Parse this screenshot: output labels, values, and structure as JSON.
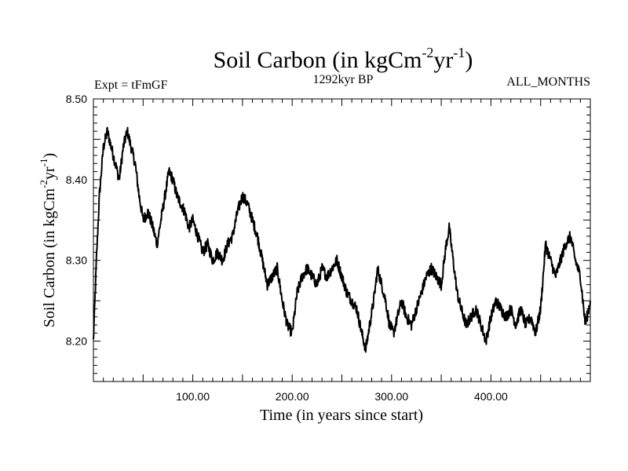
{
  "chart_data": {
    "type": "line",
    "title_main": "Soil Carbon (in kgCm",
    "title_sup1": "-2",
    "title_mid": "yr",
    "title_sup2": "-1",
    "title_end": ")",
    "subtitle_left": "Expt = tFmGF",
    "subtitle_center": "1292kyr BP",
    "subtitle_right": "ALL_MONTHS",
    "xlabel": "Time (in years since start)",
    "ylabel_main": "Soil Carbon (in kgCm",
    "ylabel_sup1": "-2",
    "ylabel_mid": "yr",
    "ylabel_sup2": "-1",
    "ylabel_end": ")",
    "xlim": [
      0,
      500
    ],
    "ylim": [
      8.15,
      8.5
    ],
    "x_ticks": [
      100,
      200,
      300,
      400
    ],
    "x_tick_labels": [
      "100.00",
      "200.00",
      "300.00",
      "400.00"
    ],
    "y_ticks": [
      8.2,
      8.3,
      8.4,
      8.5
    ],
    "y_tick_labels": [
      "8.20",
      "8.30",
      "8.40",
      "8.50"
    ],
    "series": [
      {
        "name": "Soil Carbon",
        "color": "#000000",
        "x": [
          0,
          3,
          6,
          10,
          14,
          18,
          22,
          26,
          30,
          34,
          38,
          42,
          46,
          50,
          55,
          60,
          64,
          68,
          72,
          76,
          80,
          84,
          88,
          92,
          96,
          100,
          105,
          110,
          115,
          120,
          125,
          130,
          135,
          140,
          145,
          150,
          155,
          160,
          165,
          170,
          175,
          180,
          185,
          190,
          195,
          200,
          205,
          210,
          215,
          220,
          225,
          230,
          235,
          240,
          245,
          250,
          255,
          260,
          265,
          270,
          274,
          278,
          282,
          286,
          290,
          294,
          298,
          302,
          306,
          310,
          315,
          320,
          325,
          330,
          335,
          340,
          345,
          350,
          355,
          358,
          362,
          366,
          370,
          375,
          380,
          385,
          390,
          395,
          400,
          405,
          410,
          415,
          420,
          425,
          430,
          435,
          440,
          445,
          450,
          455,
          460,
          465,
          470,
          475,
          480,
          485,
          490,
          495,
          500
        ],
        "y": [
          8.2,
          8.3,
          8.38,
          8.44,
          8.46,
          8.44,
          8.42,
          8.4,
          8.44,
          8.46,
          8.44,
          8.42,
          8.38,
          8.35,
          8.36,
          8.34,
          8.32,
          8.35,
          8.38,
          8.41,
          8.4,
          8.38,
          8.37,
          8.36,
          8.34,
          8.35,
          8.33,
          8.31,
          8.32,
          8.3,
          8.31,
          8.3,
          8.32,
          8.33,
          8.36,
          8.38,
          8.37,
          8.35,
          8.33,
          8.3,
          8.27,
          8.28,
          8.29,
          8.25,
          8.22,
          8.21,
          8.26,
          8.28,
          8.29,
          8.28,
          8.27,
          8.29,
          8.28,
          8.29,
          8.3,
          8.28,
          8.26,
          8.25,
          8.24,
          8.21,
          8.19,
          8.22,
          8.25,
          8.29,
          8.27,
          8.25,
          8.22,
          8.21,
          8.23,
          8.25,
          8.23,
          8.22,
          8.24,
          8.26,
          8.28,
          8.29,
          8.28,
          8.27,
          8.32,
          8.34,
          8.3,
          8.26,
          8.24,
          8.22,
          8.23,
          8.24,
          8.22,
          8.2,
          8.23,
          8.25,
          8.24,
          8.23,
          8.24,
          8.22,
          8.24,
          8.22,
          8.23,
          8.21,
          8.24,
          8.32,
          8.3,
          8.28,
          8.3,
          8.32,
          8.33,
          8.3,
          8.28,
          8.22,
          8.25
        ]
      }
    ]
  }
}
